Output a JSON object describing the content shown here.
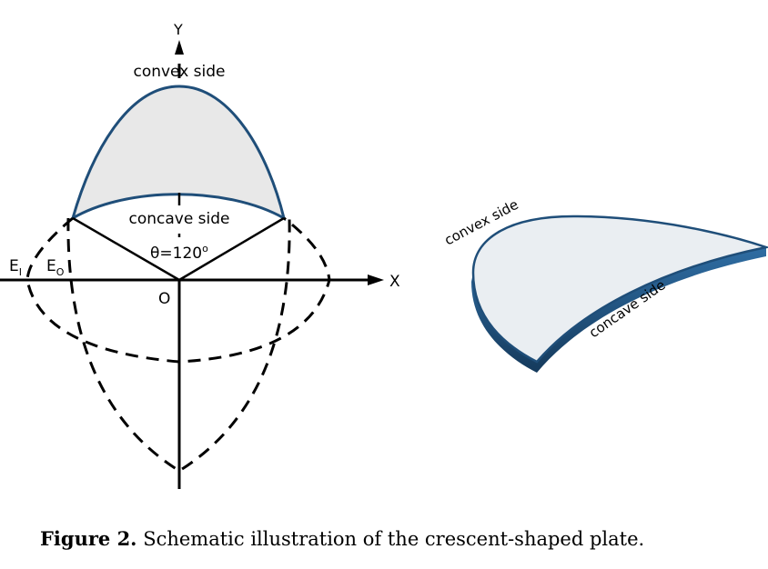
{
  "diagram": {
    "axis_y_label": "Y",
    "axis_x_label": "X",
    "origin_label": "O",
    "convex_label": "convex side",
    "concave_label": "concave side",
    "theta_label": "θ=120",
    "theta_unit": "o",
    "ellipse_inner_main": "E",
    "ellipse_inner_sub": "I",
    "ellipse_outer_main": "E",
    "ellipse_outer_sub": "O",
    "plate_convex_label": "convex side",
    "plate_concave_label": "concave side",
    "colors": {
      "plate_fill": "#e8e8e8",
      "plate_edge": "#1f4e79"
    }
  },
  "caption": {
    "label": "Figure 2.",
    "text": "Schematic illustration of the crescent-shaped plate."
  }
}
